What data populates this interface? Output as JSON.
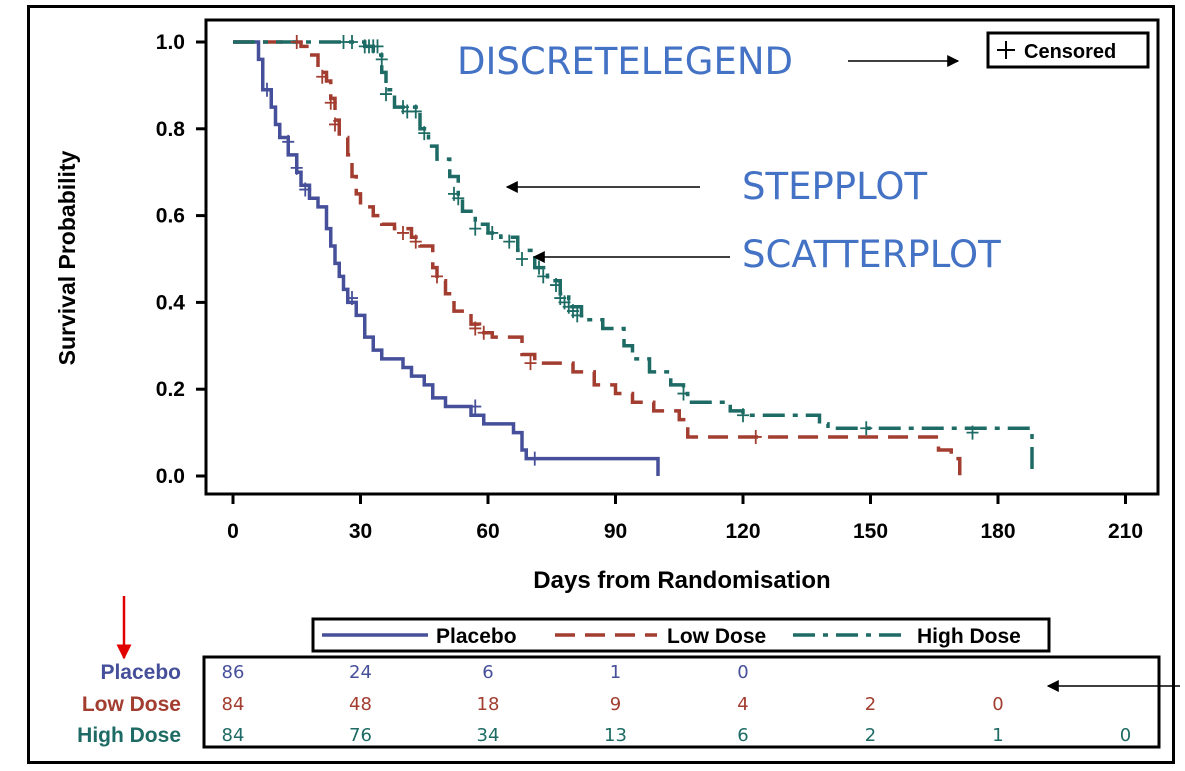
{
  "chart_data": {
    "type": "line",
    "subtype": "kaplan-meier-step",
    "title": "",
    "xlabel": "Days from Randomisation",
    "ylabel": "Survival Probability",
    "xlim": [
      0,
      210
    ],
    "ylim": [
      0,
      1
    ],
    "x_ticks": [
      "0",
      "30",
      "60",
      "90",
      "120",
      "150",
      "180",
      "210"
    ],
    "y_ticks": [
      "0.0",
      "0.2",
      "0.4",
      "0.6",
      "0.8",
      "1.0"
    ],
    "censored_legend": "Censored",
    "legend": [
      "Placebo",
      "Low Dose",
      "High Dose"
    ],
    "series": [
      {
        "name": "Placebo",
        "color": "#46509A",
        "dash": "solid",
        "steps": [
          [
            0,
            1.0
          ],
          [
            6,
            0.96
          ],
          [
            7,
            0.89
          ],
          [
            9,
            0.85
          ],
          [
            10,
            0.81
          ],
          [
            11,
            0.78
          ],
          [
            13,
            0.74
          ],
          [
            15,
            0.7
          ],
          [
            16,
            0.67
          ],
          [
            18,
            0.64
          ],
          [
            20,
            0.62
          ],
          [
            21,
            0.62
          ],
          [
            22,
            0.57
          ],
          [
            23,
            0.53
          ],
          [
            24,
            0.49
          ],
          [
            25,
            0.46
          ],
          [
            26,
            0.43
          ],
          [
            27,
            0.4
          ],
          [
            29,
            0.37
          ],
          [
            31,
            0.32
          ],
          [
            33,
            0.29
          ],
          [
            35,
            0.27
          ],
          [
            38,
            0.27
          ],
          [
            40,
            0.25
          ],
          [
            42,
            0.23
          ],
          [
            45,
            0.21
          ],
          [
            47,
            0.18
          ],
          [
            50,
            0.16
          ],
          [
            56,
            0.14
          ],
          [
            59,
            0.12
          ],
          [
            66,
            0.1
          ],
          [
            68,
            0.06
          ],
          [
            69,
            0.04
          ],
          [
            100,
            0.04
          ],
          [
            100,
            0.0
          ]
        ],
        "censored": [
          [
            8,
            0.89
          ],
          [
            13,
            0.77
          ],
          [
            15,
            0.71
          ],
          [
            17,
            0.66
          ],
          [
            28,
            0.41
          ],
          [
            57,
            0.16
          ],
          [
            71,
            0.04
          ]
        ]
      },
      {
        "name": "Low Dose",
        "color": "#A23D30",
        "dash": "dash",
        "steps": [
          [
            0,
            1.0
          ],
          [
            16,
            0.99
          ],
          [
            18,
            0.97
          ],
          [
            20,
            0.93
          ],
          [
            22,
            0.91
          ],
          [
            23,
            0.87
          ],
          [
            24,
            0.82
          ],
          [
            25,
            0.78
          ],
          [
            27,
            0.74
          ],
          [
            28,
            0.69
          ],
          [
            29,
            0.65
          ],
          [
            30,
            0.62
          ],
          [
            33,
            0.6
          ],
          [
            35,
            0.58
          ],
          [
            38,
            0.57
          ],
          [
            42,
            0.55
          ],
          [
            44,
            0.53
          ],
          [
            47,
            0.48
          ],
          [
            48,
            0.45
          ],
          [
            50,
            0.42
          ],
          [
            52,
            0.38
          ],
          [
            56,
            0.35
          ],
          [
            58,
            0.33
          ],
          [
            61,
            0.32
          ],
          [
            68,
            0.28
          ],
          [
            71,
            0.26
          ],
          [
            80,
            0.24
          ],
          [
            85,
            0.21
          ],
          [
            90,
            0.19
          ],
          [
            94,
            0.17
          ],
          [
            99,
            0.15
          ],
          [
            105,
            0.13
          ],
          [
            107,
            0.09
          ],
          [
            108,
            0.09
          ],
          [
            166,
            0.06
          ],
          [
            169,
            0.04
          ],
          [
            171,
            0.0
          ]
        ],
        "censored": [
          [
            15,
            1.0
          ],
          [
            21,
            0.92
          ],
          [
            23,
            0.86
          ],
          [
            24,
            0.81
          ],
          [
            40,
            0.56
          ],
          [
            43,
            0.54
          ],
          [
            48,
            0.46
          ],
          [
            57,
            0.34
          ],
          [
            59,
            0.33
          ],
          [
            70,
            0.26
          ],
          [
            123,
            0.09
          ]
        ]
      },
      {
        "name": "High Dose",
        "color": "#1D6B64",
        "dash": "dashdot",
        "steps": [
          [
            0,
            1.0
          ],
          [
            31,
            0.99
          ],
          [
            33,
            0.97
          ],
          [
            35,
            0.93
          ],
          [
            36,
            0.89
          ],
          [
            38,
            0.85
          ],
          [
            44,
            0.8
          ],
          [
            46,
            0.76
          ],
          [
            48,
            0.73
          ],
          [
            51,
            0.69
          ],
          [
            53,
            0.64
          ],
          [
            54,
            0.61
          ],
          [
            57,
            0.58
          ],
          [
            60,
            0.56
          ],
          [
            63,
            0.55
          ],
          [
            67,
            0.52
          ],
          [
            71,
            0.48
          ],
          [
            74,
            0.45
          ],
          [
            77,
            0.42
          ],
          [
            79,
            0.39
          ],
          [
            82,
            0.36
          ],
          [
            87,
            0.34
          ],
          [
            92,
            0.3
          ],
          [
            94,
            0.27
          ],
          [
            98,
            0.24
          ],
          [
            103,
            0.21
          ],
          [
            106,
            0.19
          ],
          [
            107,
            0.17
          ],
          [
            117,
            0.15
          ],
          [
            120,
            0.14
          ],
          [
            138,
            0.12
          ],
          [
            140,
            0.11
          ],
          [
            188,
            0.1
          ],
          [
            188,
            0.0
          ]
        ],
        "censored": [
          [
            26,
            1.0
          ],
          [
            28,
            1.0
          ],
          [
            31,
            0.99
          ],
          [
            32,
            0.99
          ],
          [
            33,
            0.99
          ],
          [
            34,
            0.99
          ],
          [
            35,
            0.96
          ],
          [
            36,
            0.88
          ],
          [
            40,
            0.85
          ],
          [
            41,
            0.84
          ],
          [
            43,
            0.84
          ],
          [
            45,
            0.79
          ],
          [
            52,
            0.65
          ],
          [
            53,
            0.64
          ],
          [
            57,
            0.57
          ],
          [
            61,
            0.56
          ],
          [
            65,
            0.54
          ],
          [
            68,
            0.5
          ],
          [
            72,
            0.48
          ],
          [
            73,
            0.46
          ],
          [
            76,
            0.44
          ],
          [
            77,
            0.41
          ],
          [
            78,
            0.4
          ],
          [
            79,
            0.39
          ],
          [
            80,
            0.38
          ],
          [
            81,
            0.37
          ],
          [
            106,
            0.19
          ],
          [
            120,
            0.14
          ],
          [
            149,
            0.11
          ],
          [
            174,
            0.1
          ]
        ]
      }
    ],
    "risk_table": {
      "x": [
        0,
        30,
        60,
        90,
        120,
        150,
        180,
        210
      ],
      "rows": [
        {
          "name": "Placebo",
          "counts": [
            "86",
            "24",
            "6",
            "1",
            "0"
          ]
        },
        {
          "name": "Low Dose",
          "counts": [
            "84",
            "48",
            "18",
            "9",
            "4",
            "2",
            "0"
          ]
        },
        {
          "name": "High Dose",
          "counts": [
            "84",
            "76",
            "34",
            "13",
            "6",
            "2",
            "1",
            "0"
          ]
        }
      ]
    }
  },
  "annotations": {
    "discretelegend": "DISCRETELEGEND",
    "stepplot": "STEPPLOT",
    "scatterplot": "SCATTERPLOT"
  }
}
